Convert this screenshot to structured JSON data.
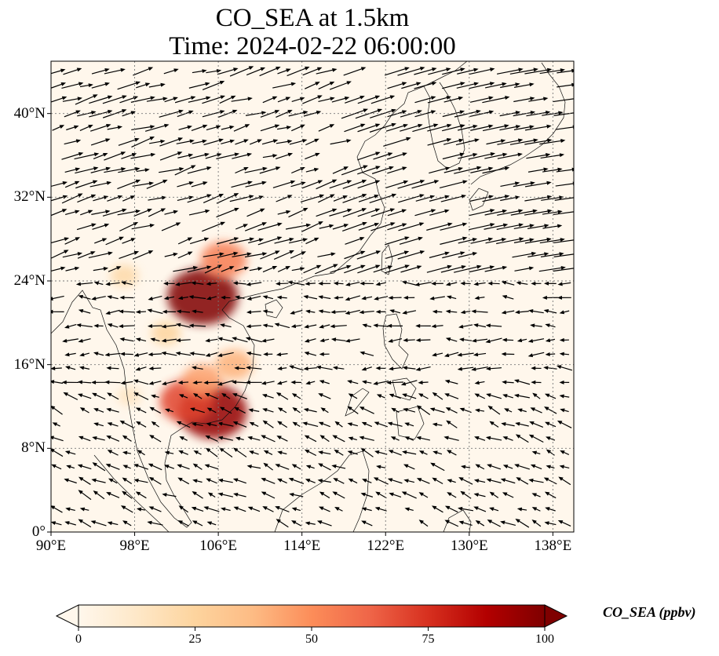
{
  "title": "CO_SEA at 1.5km",
  "subtitle": "Time: 2024-02-22 06:00:00",
  "map": {
    "lon_range": [
      90,
      140
    ],
    "lat_range": [
      0,
      45
    ],
    "lat_ticks": [
      {
        "value": 40,
        "label": "40°N"
      },
      {
        "value": 32,
        "label": "32°N"
      },
      {
        "value": 24,
        "label": "24°N"
      },
      {
        "value": 16,
        "label": "16°N"
      },
      {
        "value": 8,
        "label": "8°N"
      },
      {
        "value": 0,
        "label": "0°"
      }
    ],
    "lon_ticks": [
      {
        "value": 90,
        "label": "90°E"
      },
      {
        "value": 98,
        "label": "98°E"
      },
      {
        "value": 106,
        "label": "106°E"
      },
      {
        "value": 114,
        "label": "114°E"
      },
      {
        "value": 122,
        "label": "122°E"
      },
      {
        "value": 130,
        "label": "130°E"
      },
      {
        "value": 138,
        "label": "138°E"
      }
    ],
    "gridlines": true,
    "colormap": "OrRd",
    "concentration_hotspots_ppbv": [
      {
        "lon": 104.5,
        "lat": 22.5,
        "value": 100
      },
      {
        "lon": 105.5,
        "lat": 11.5,
        "value": 95
      },
      {
        "lon": 103.0,
        "lat": 12.5,
        "value": 70
      },
      {
        "lon": 106.5,
        "lat": 26.0,
        "value": 55
      },
      {
        "lon": 104.5,
        "lat": 14.5,
        "value": 45
      },
      {
        "lon": 107.5,
        "lat": 16.0,
        "value": 40
      },
      {
        "lon": 97.0,
        "lat": 24.5,
        "value": 22
      },
      {
        "lon": 101.0,
        "lat": 19.0,
        "value": 25
      },
      {
        "lon": 97.5,
        "lat": 13.0,
        "value": 15
      }
    ]
  },
  "colorbar": {
    "label": "CO_SEA (ppbv)",
    "min": 0,
    "max": 100,
    "extend": "both",
    "ticks": [
      {
        "value": 0,
        "label": "0"
      },
      {
        "value": 25,
        "label": "25"
      },
      {
        "value": 50,
        "label": "50"
      },
      {
        "value": 75,
        "label": "75"
      },
      {
        "value": 100,
        "label": "100"
      }
    ],
    "colors": [
      "#fff7ec",
      "#fee8c8",
      "#fdd49e",
      "#fdbb84",
      "#fc8d59",
      "#ef6548",
      "#d7301f",
      "#b30000",
      "#7f0000"
    ]
  }
}
